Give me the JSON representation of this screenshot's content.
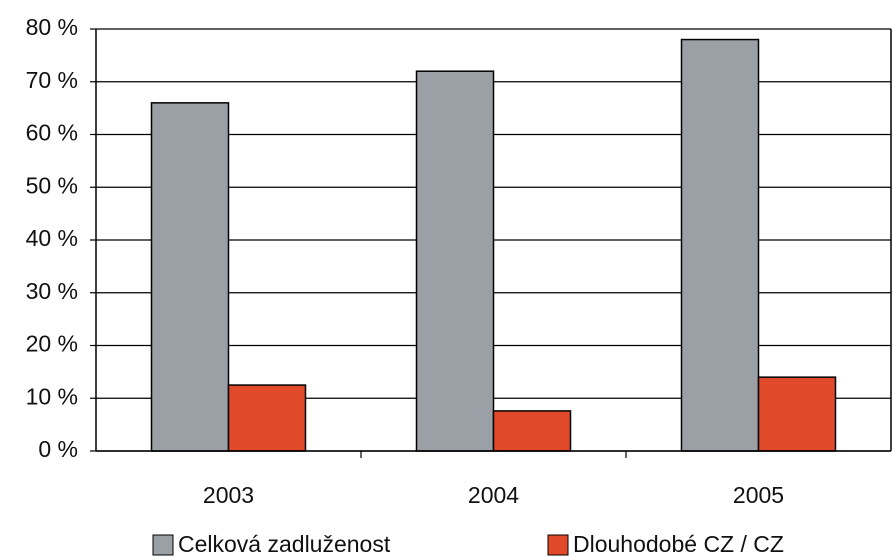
{
  "chart_data": {
    "type": "bar",
    "categories": [
      "2003",
      "2004",
      "2005"
    ],
    "series": [
      {
        "name": "Celková zadluženost",
        "color": "#9aa0a6",
        "values": [
          66,
          72,
          78
        ]
      },
      {
        "name": "Dlouhodobé CZ / CZ",
        "color": "#e04a2a",
        "values": [
          12.5,
          7.6,
          14
        ]
      }
    ],
    "ylim": [
      0,
      80
    ],
    "yticks": [
      {
        "value": 0,
        "label": "0 %"
      },
      {
        "value": 10,
        "label": "10 %"
      },
      {
        "value": 20,
        "label": "20 %"
      },
      {
        "value": 30,
        "label": "30 %"
      },
      {
        "value": 40,
        "label": "40 %"
      },
      {
        "value": 50,
        "label": "50 %"
      },
      {
        "value": 60,
        "label": "60 %"
      },
      {
        "value": 70,
        "label": "70 %"
      },
      {
        "value": 80,
        "label": "80 %"
      }
    ],
    "grid": true,
    "legend": "bottom"
  }
}
